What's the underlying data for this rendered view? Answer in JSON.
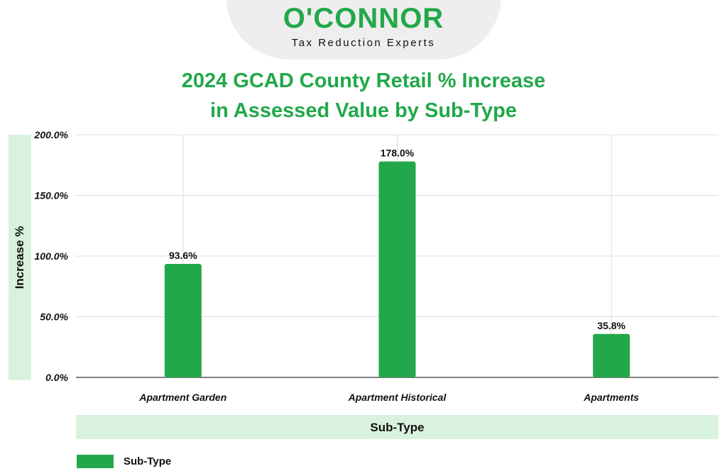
{
  "brand": {
    "name": "O'CONNOR",
    "tagline": "Tax Reduction Experts"
  },
  "chart_data": {
    "type": "bar",
    "title": "2024 GCAD County Retail % Increase in Assessed Value by Sub-Type",
    "title_lines": [
      "2024 GCAD County Retail % Increase",
      "in Assessed Value by Sub-Type"
    ],
    "xlabel": "Sub-Type",
    "ylabel": "Increase %",
    "categories": [
      "Apartment Garden",
      "Apartment Historical",
      "Apartments"
    ],
    "series": [
      {
        "name": "Sub-Type",
        "values": [
          93.6,
          178.0,
          35.8
        ],
        "labels": [
          "93.6%",
          "178.0%",
          "35.8%"
        ]
      }
    ],
    "ylim": [
      0,
      200
    ],
    "yticks": [
      0,
      50,
      100,
      150,
      200
    ],
    "ytick_labels": [
      "0.0%",
      "50.0%",
      "100.0%",
      "150.0%",
      "200.0%"
    ],
    "grid": true,
    "legend_position": "bottom-left"
  },
  "colors": {
    "accent": "#22a84a",
    "band": "#d9f2dd",
    "grid": "#dddddd",
    "text": "#111111"
  }
}
